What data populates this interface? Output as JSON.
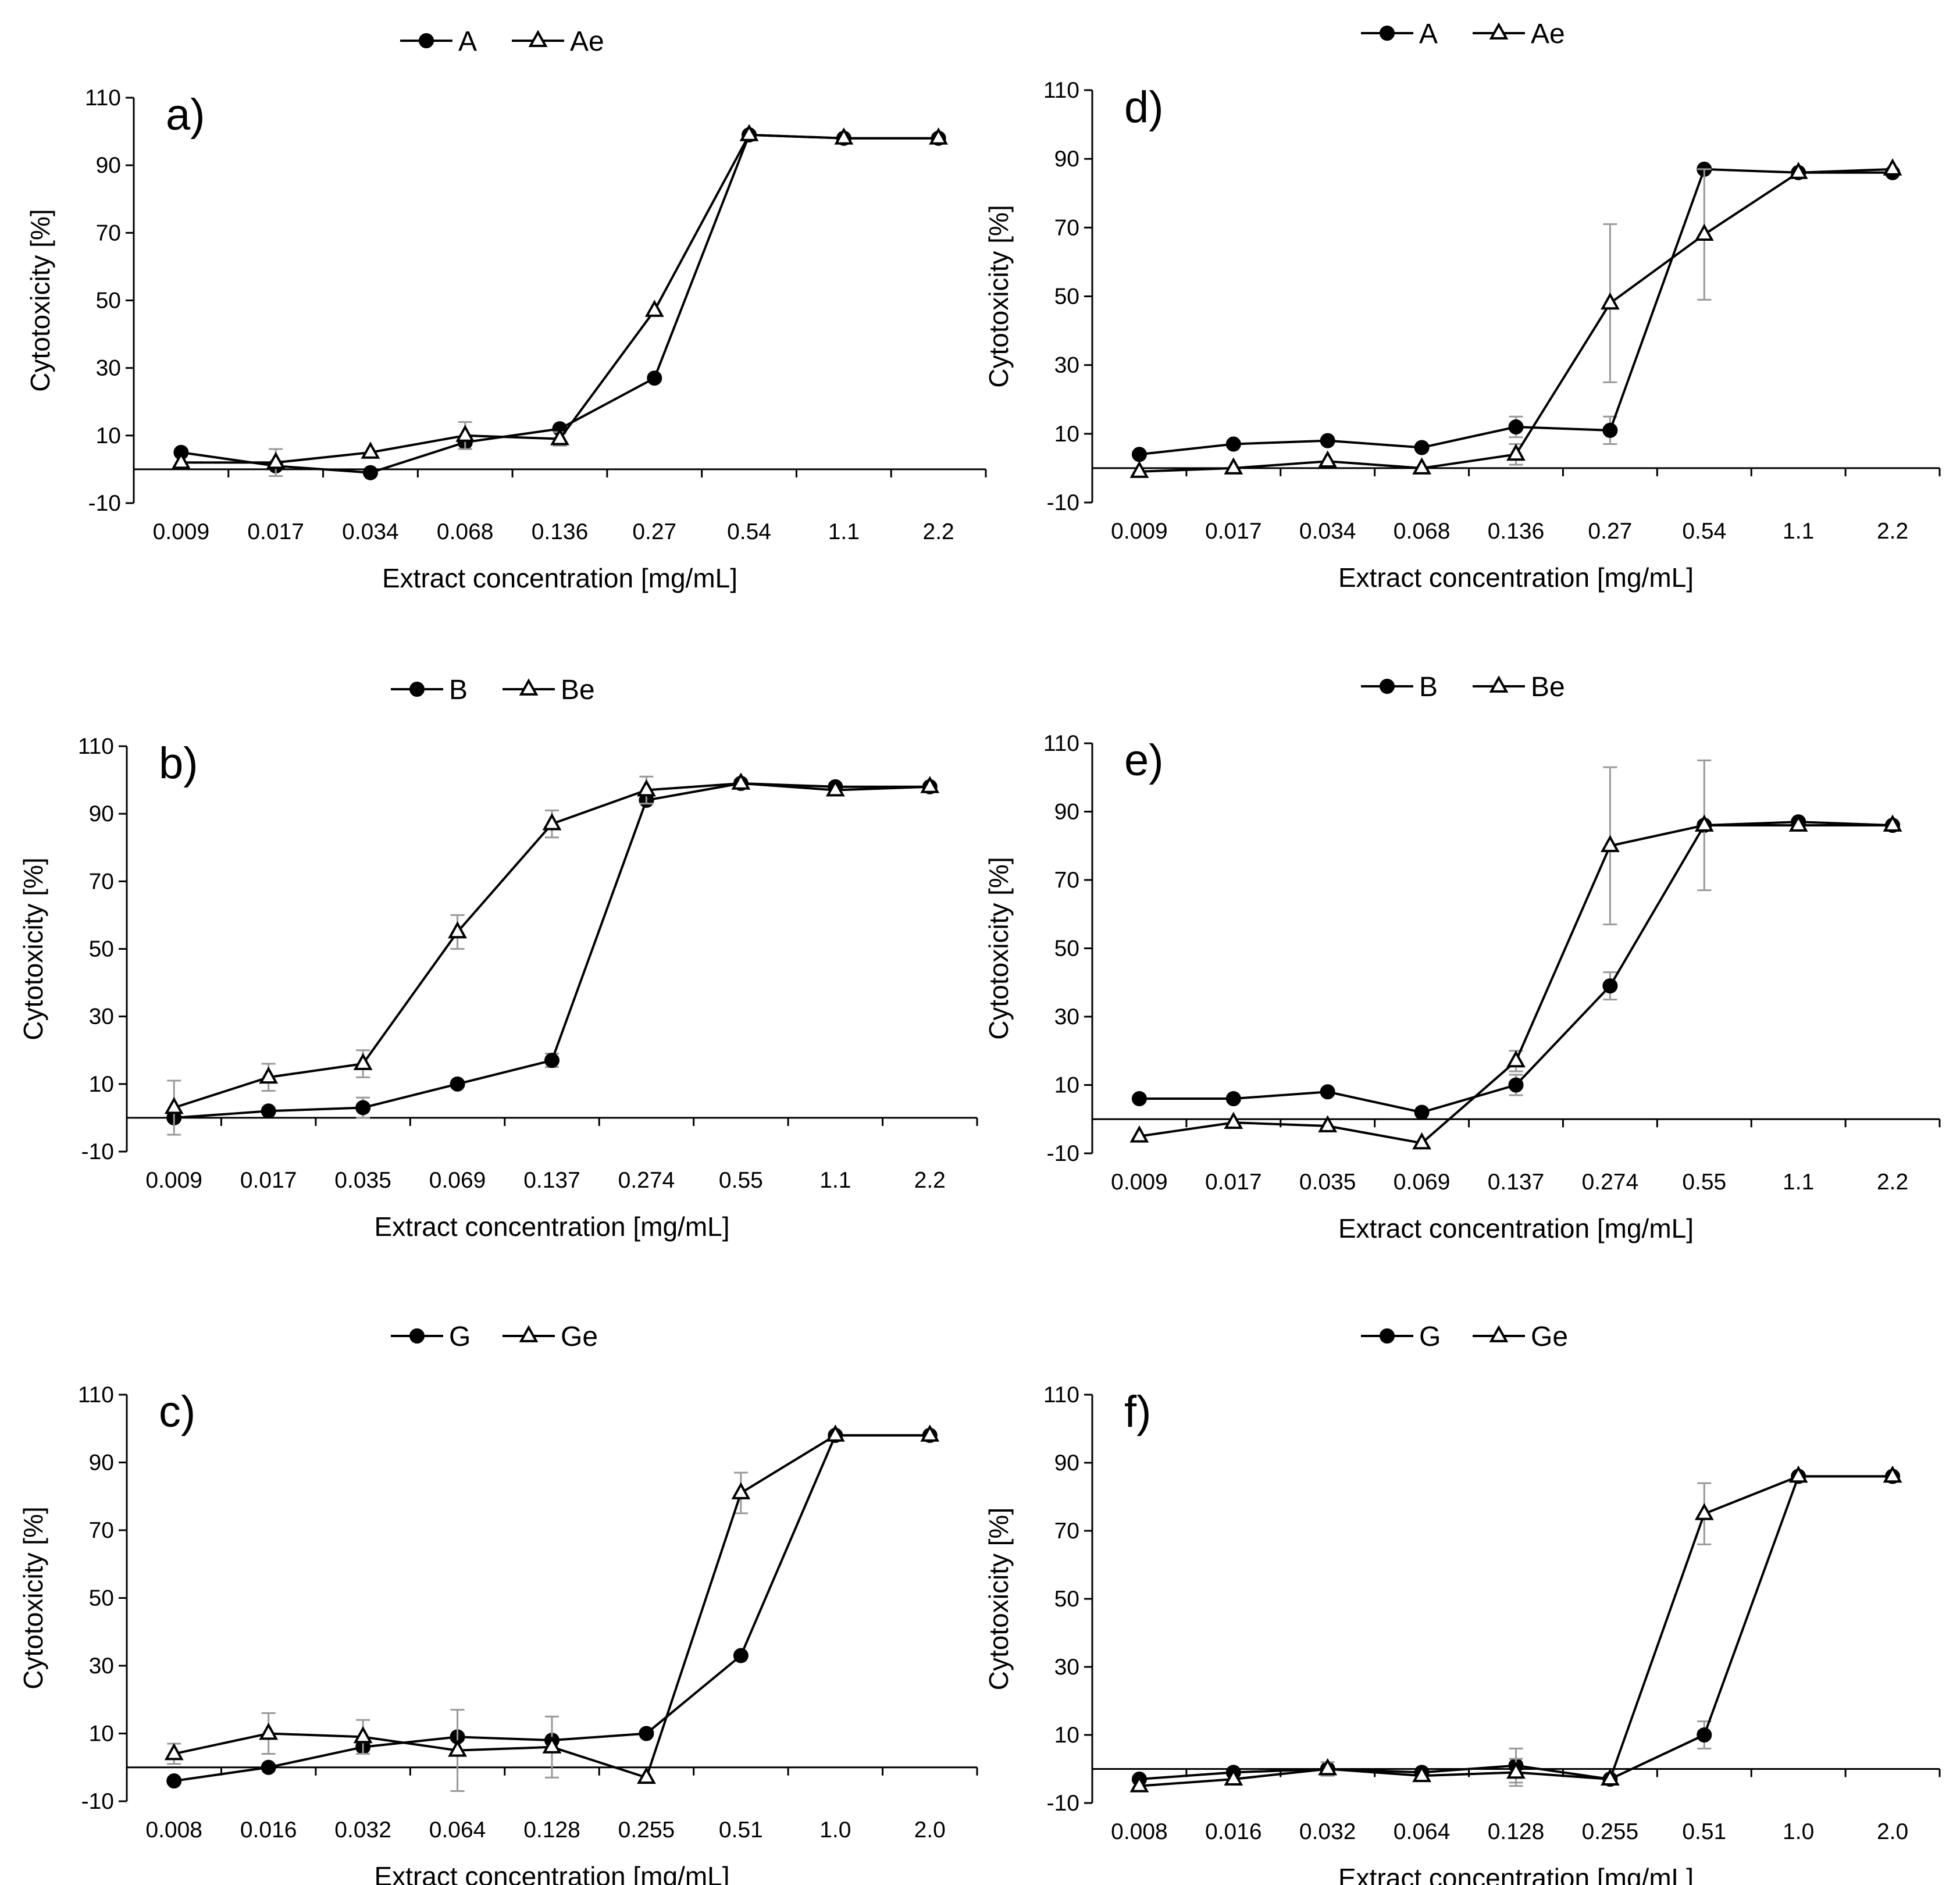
{
  "figure": {
    "description_free": true
  },
  "chart_data": [
    {
      "id": "a",
      "type": "line",
      "panel_label": "a)",
      "xlabel": "Extract concentration [mg/mL]",
      "ylabel": "Cytotoxicity [%]",
      "ylim": [
        -10,
        110
      ],
      "yticks": [
        -10,
        10,
        30,
        50,
        70,
        90,
        110
      ],
      "categories": [
        "0.009",
        "0.017",
        "0.034",
        "0.068",
        "0.136",
        "0.27",
        "0.54",
        "1.1",
        "2.2"
      ],
      "series": [
        {
          "name": "A",
          "marker": "filled-circle",
          "values": [
            5,
            1,
            -1,
            8,
            12,
            27,
            99,
            98,
            98
          ],
          "error": [
            0,
            0,
            0,
            0,
            0,
            0,
            0,
            0,
            0
          ]
        },
        {
          "name": "Ae",
          "marker": "open-triangle",
          "values": [
            2,
            2,
            5,
            10,
            9,
            47,
            99,
            98,
            98
          ],
          "error": [
            0,
            4,
            0,
            4,
            2,
            0,
            0,
            0,
            0
          ]
        }
      ]
    },
    {
      "id": "b",
      "type": "line",
      "panel_label": "b)",
      "xlabel": "Extract concentration [mg/mL]",
      "ylabel": "Cytotoxicity [%]",
      "ylim": [
        -10,
        110
      ],
      "yticks": [
        -10,
        10,
        30,
        50,
        70,
        90,
        110
      ],
      "categories": [
        "0.009",
        "0.017",
        "0.035",
        "0.069",
        "0.137",
        "0.274",
        "0.55",
        "1.1",
        "2.2"
      ],
      "series": [
        {
          "name": "B",
          "marker": "filled-circle",
          "values": [
            0,
            2,
            3,
            10,
            17,
            94,
            99,
            98,
            98
          ],
          "error": [
            0,
            0,
            3,
            0,
            2,
            0,
            0,
            0,
            0
          ]
        },
        {
          "name": "Be",
          "marker": "open-triangle",
          "values": [
            3,
            12,
            16,
            55,
            87,
            97,
            99,
            97,
            98
          ],
          "error": [
            8,
            4,
            4,
            5,
            4,
            4,
            0,
            0,
            0
          ]
        }
      ]
    },
    {
      "id": "c",
      "type": "line",
      "panel_label": "c)",
      "xlabel": "Extract concentration [mg/mL]",
      "ylabel": "Cytotoxicity [%]",
      "ylim": [
        -10,
        110
      ],
      "yticks": [
        -10,
        10,
        30,
        50,
        70,
        90,
        110
      ],
      "categories": [
        "0.008",
        "0.016",
        "0.032",
        "0.064",
        "0.128",
        "0.255",
        "0.51",
        "1.0",
        "2.0"
      ],
      "series": [
        {
          "name": "G",
          "marker": "filled-circle",
          "values": [
            -4,
            0,
            6,
            9,
            8,
            10,
            33,
            98,
            98
          ],
          "error": [
            0,
            0,
            0,
            0,
            0,
            0,
            0,
            0,
            0
          ]
        },
        {
          "name": "Ge",
          "marker": "open-triangle",
          "values": [
            4,
            10,
            9,
            5,
            6,
            -3,
            81,
            98,
            98
          ],
          "error": [
            3,
            6,
            5,
            12,
            9,
            0,
            6,
            0,
            0
          ]
        }
      ]
    },
    {
      "id": "d",
      "type": "line",
      "panel_label": "d)",
      "xlabel": "Extract concentration [mg/mL]",
      "ylabel": "Cytotoxicity [%]",
      "ylim": [
        -10,
        110
      ],
      "yticks": [
        -10,
        10,
        30,
        50,
        70,
        90,
        110
      ],
      "categories": [
        "0.009",
        "0.017",
        "0.034",
        "0.068",
        "0.136",
        "0.27",
        "0.54",
        "1.1",
        "2.2"
      ],
      "series": [
        {
          "name": "A",
          "marker": "filled-circle",
          "values": [
            4,
            7,
            8,
            6,
            12,
            11,
            87,
            86,
            86
          ],
          "error": [
            0,
            0,
            0,
            0,
            3,
            4,
            0,
            0,
            0
          ]
        },
        {
          "name": "Ae",
          "marker": "open-triangle",
          "values": [
            -1,
            0,
            2,
            0,
            4,
            48,
            68,
            86,
            87
          ],
          "error": [
            0,
            0,
            0,
            0,
            3,
            23,
            19,
            0,
            0
          ]
        }
      ]
    },
    {
      "id": "e",
      "type": "line",
      "panel_label": "e)",
      "xlabel": "Extract concentration [mg/mL]",
      "ylabel": "Cytotoxicity  [%]",
      "ylim": [
        -10,
        110
      ],
      "yticks": [
        -10,
        10,
        30,
        50,
        70,
        90,
        110
      ],
      "categories": [
        "0.009",
        "0.017",
        "0.035",
        "0.069",
        "0.137",
        "0.274",
        "0.55",
        "1.1",
        "2.2"
      ],
      "series": [
        {
          "name": "B",
          "marker": "filled-circle",
          "values": [
            6,
            6,
            8,
            2,
            10,
            39,
            86,
            87,
            86
          ],
          "error": [
            0,
            0,
            0,
            0,
            3,
            4,
            0,
            0,
            0
          ]
        },
        {
          "name": "Be",
          "marker": "open-triangle",
          "values": [
            -5,
            -1,
            -2,
            -7,
            17,
            80,
            86,
            86,
            86
          ],
          "error": [
            0,
            0,
            0,
            0,
            3,
            23,
            19,
            0,
            0
          ]
        }
      ]
    },
    {
      "id": "f",
      "type": "line",
      "panel_label": "f)",
      "xlabel": "Extract concentration [mg/mL]",
      "ylabel": "Cytotoxicity  [%]",
      "ylim": [
        -10,
        110
      ],
      "yticks": [
        -10,
        10,
        30,
        50,
        70,
        90,
        110
      ],
      "categories": [
        "0.008",
        "0.016",
        "0.032",
        "0.064",
        "0.128",
        "0.255",
        "0.51",
        "1.0",
        "2.0"
      ],
      "series": [
        {
          "name": "G",
          "marker": "filled-circle",
          "values": [
            -3,
            -1,
            0,
            -1,
            1,
            -3,
            10,
            86,
            86
          ],
          "error": [
            0,
            0,
            0,
            0,
            5,
            0,
            4,
            0,
            0
          ]
        },
        {
          "name": "Ge",
          "marker": "open-triangle",
          "values": [
            -5,
            -3,
            0,
            -2,
            -1,
            -3,
            75,
            86,
            86
          ],
          "error": [
            0,
            0,
            2,
            0,
            4,
            0,
            9,
            0,
            0
          ]
        }
      ]
    }
  ]
}
